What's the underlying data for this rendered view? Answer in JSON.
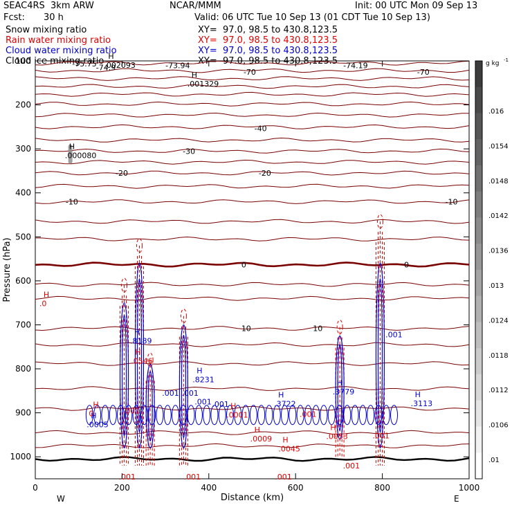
{
  "header": {
    "project": "SEAC4RS  3km ARW",
    "center": "NCAR/MMM",
    "init": "Init: 00 UTC Mon 09 Sep 13",
    "fcst_label": "Fcst:",
    "fcst_value": "30 h",
    "valid": "Valid: 06 UTC Tue 10 Sep 13 (01 CDT Tue 10 Sep 13)"
  },
  "legend": [
    {
      "name": "Snow mixing ratio",
      "xy": "XY=  97.0, 98.5 to 430.8,123.5",
      "color": "#000000"
    },
    {
      "name": "Rain water mixing ratio",
      "xy": "XY=  97.0, 98.5 to 430.8,123.5",
      "color": "#e00000"
    },
    {
      "name": "Cloud water mixing ratio",
      "xy": "XY=  97.0, 98.5 to 430.8,123.5",
      "color": "#0000cc"
    },
    {
      "name": "Cloud ice mixing ratio",
      "xy": "XY=  97.0, 98.5 to 430.8,123.5",
      "color": "#000000"
    }
  ],
  "chart_data": {
    "type": "cross-section",
    "xlabel": "Distance (km)",
    "ylabel": "Pressure (hPa)",
    "xlim": [
      0,
      1000
    ],
    "ylim": [
      1050,
      100
    ],
    "x_ticks": [
      0,
      200,
      400,
      600,
      800,
      1000
    ],
    "y_ticks": [
      100,
      200,
      300,
      400,
      500,
      600,
      700,
      800,
      900,
      1000
    ],
    "x_tick_labels": [
      "0",
      "200",
      "400",
      "600",
      "800",
      "1000"
    ],
    "y_tick_labels": [
      "100",
      "200",
      "300",
      "400",
      "500",
      "600",
      "700",
      "800",
      "900",
      "1000"
    ],
    "west_label": "W",
    "east_label": "E",
    "temperature_isotherms": [
      {
        "p": 1005,
        "label": "",
        "bold": true
      },
      {
        "p": 975,
        "label": ""
      },
      {
        "p": 945,
        "label": ""
      },
      {
        "p": 890,
        "label": "20"
      },
      {
        "p": 845,
        "label": ""
      },
      {
        "p": 788,
        "label": ""
      },
      {
        "p": 745,
        "label": ""
      },
      {
        "p": 708,
        "label": "10"
      },
      {
        "p": 640,
        "label": ""
      },
      {
        "p": 608,
        "label": ""
      },
      {
        "p": 563,
        "label": "0",
        "bold": true
      },
      {
        "p": 505,
        "label": ""
      },
      {
        "p": 465,
        "label": ""
      },
      {
        "p": 420,
        "label": "-10"
      },
      {
        "p": 385,
        "label": ""
      },
      {
        "p": 355,
        "label": "-20"
      },
      {
        "p": 330,
        "label": ""
      },
      {
        "p": 305,
        "label": "-30"
      },
      {
        "p": 280,
        "label": ""
      },
      {
        "p": 250,
        "label": "-40"
      },
      {
        "p": 223,
        "label": ""
      },
      {
        "p": 198,
        "label": ""
      },
      {
        "p": 176,
        "label": ""
      },
      {
        "p": 158,
        "label": ""
      },
      {
        "p": 140,
        "label": ""
      },
      {
        "p": 122,
        "label": "-70"
      },
      {
        "p": 105,
        "label": "-74"
      }
    ],
    "isotherm_labels": [
      {
        "x": 140,
        "p": 115,
        "text": "-74.9"
      },
      {
        "x": 85,
        "p": 106,
        "text": "-75.75"
      },
      {
        "x": 300,
        "p": 110,
        "text": "-73.94"
      },
      {
        "x": 710,
        "p": 110,
        "text": "-74.19"
      },
      {
        "x": 480,
        "p": 125,
        "text": "-70"
      },
      {
        "x": 880,
        "p": 125,
        "text": "-70"
      },
      {
        "x": 505,
        "p": 253,
        "text": "-40"
      },
      {
        "x": 340,
        "p": 305,
        "text": "-30"
      },
      {
        "x": 185,
        "p": 355,
        "text": "-20"
      },
      {
        "x": 515,
        "p": 355,
        "text": "-20"
      },
      {
        "x": 70,
        "p": 420,
        "text": "-10"
      },
      {
        "x": 945,
        "p": 420,
        "text": "-10"
      },
      {
        "x": 475,
        "p": 563,
        "text": "0"
      },
      {
        "x": 850,
        "p": 563,
        "text": "0"
      },
      {
        "x": 475,
        "p": 708,
        "text": "10"
      },
      {
        "x": 640,
        "p": 708,
        "text": "10"
      }
    ],
    "extrema_labels": [
      {
        "x": 168,
        "p": 108,
        "letter": "H",
        "value": ".002093",
        "color": "#000000"
      },
      {
        "x": 360,
        "p": 150,
        "letter": "H",
        "value": ".001329",
        "color": "#000000"
      },
      {
        "x": 78,
        "p": 313,
        "letter": "H",
        "value": ".000080",
        "color": "#000000"
      },
      {
        "x": 19,
        "p": 650,
        "letter": "H",
        "value": ".0",
        "color": "#e00000"
      },
      {
        "x": 228,
        "p": 735,
        "letter": "H",
        "value": ".8189",
        "color": "#0000cc"
      },
      {
        "x": 230,
        "p": 780,
        "letter": "H",
        "value": ".0546",
        "color": "#e00000"
      },
      {
        "x": 372,
        "p": 823,
        "letter": "H",
        "value": ".8231",
        "color": "#0000cc"
      },
      {
        "x": 560,
        "p": 878,
        "letter": "H",
        "value": ".3722",
        "color": "#0000cc"
      },
      {
        "x": 695,
        "p": 850,
        "letter": "H",
        "value": ".3779",
        "color": "#0000cc"
      },
      {
        "x": 875,
        "p": 877,
        "letter": "H",
        "value": ".3113",
        "color": "#0000cc"
      },
      {
        "x": 128,
        "p": 925,
        "letter": "H",
        "value": ".0005",
        "color": "#0000cc"
      },
      {
        "x": 133,
        "p": 900,
        "letter": "H",
        "value": "0",
        "color": "#e00000"
      },
      {
        "x": 450,
        "p": 903,
        "letter": "H",
        "value": ".0001",
        "color": "#e00000"
      },
      {
        "x": 505,
        "p": 957,
        "letter": "H",
        "value": ".0009",
        "color": "#e00000"
      },
      {
        "x": 570,
        "p": 980,
        "letter": "H",
        "value": ".0045",
        "color": "#e00000"
      },
      {
        "x": 680,
        "p": 952,
        "letter": "H",
        "value": ".0053",
        "color": "#e00000"
      }
    ],
    "value_labels": [
      {
        "x": 205,
        "p": 1045,
        "text": ".001",
        "color": "#e00000"
      },
      {
        "x": 355,
        "p": 1045,
        "text": ".001",
        "color": "#e00000"
      },
      {
        "x": 565,
        "p": 1045,
        "text": ".001",
        "color": "#e00000"
      },
      {
        "x": 722,
        "p": 1020,
        "text": ".001",
        "color": "#e00000"
      },
      {
        "x": 790,
        "p": 952,
        "text": ".001",
        "color": "#e00000"
      },
      {
        "x": 350,
        "p": 855,
        "text": ".001",
        "color": "#0000cc"
      },
      {
        "x": 215,
        "p": 895,
        "text": ".001",
        "color": "#e00000"
      },
      {
        "x": 420,
        "p": 880,
        "text": ".001",
        "color": "#0000cc"
      },
      {
        "x": 380,
        "p": 875,
        "text": ".001",
        "color": "#0000cc"
      },
      {
        "x": 622,
        "p": 903,
        "text": ".001",
        "color": "#e00000"
      },
      {
        "x": 305,
        "p": 855,
        "text": ".001",
        "color": "#0000cc"
      },
      {
        "x": 820,
        "p": 722,
        "text": ".001",
        "color": "#0000cc"
      }
    ],
    "colorbar": {
      "unit": "g kg",
      "unit_exp": "-1",
      "ticks": [
        ".016",
        ".0154",
        ".0148",
        ".0142",
        ".0136",
        ".013",
        ".0124",
        ".0118",
        ".0112",
        ".0106",
        ".01"
      ],
      "levels": 16
    },
    "convective_cells": [
      {
        "x": 205,
        "p_top": 640,
        "p_bot": 1020,
        "cloud_top": 650,
        "rain_top": 610
      },
      {
        "x": 240,
        "p_top": 540,
        "p_bot": 1020,
        "cloud_top": 560,
        "rain_top": 520
      },
      {
        "x": 265,
        "p_top": 780,
        "p_bot": 1020,
        "cloud_top": 790,
        "rain_top": 780
      },
      {
        "x": 342,
        "p_top": 690,
        "p_bot": 1020,
        "cloud_top": 700,
        "rain_top": 680
      },
      {
        "x": 702,
        "p_top": 720,
        "p_bot": 1000,
        "cloud_top": 725,
        "rain_top": 705
      },
      {
        "x": 795,
        "p_top": 470,
        "p_bot": 1020,
        "cloud_top": 560,
        "rain_top": 465
      }
    ]
  }
}
